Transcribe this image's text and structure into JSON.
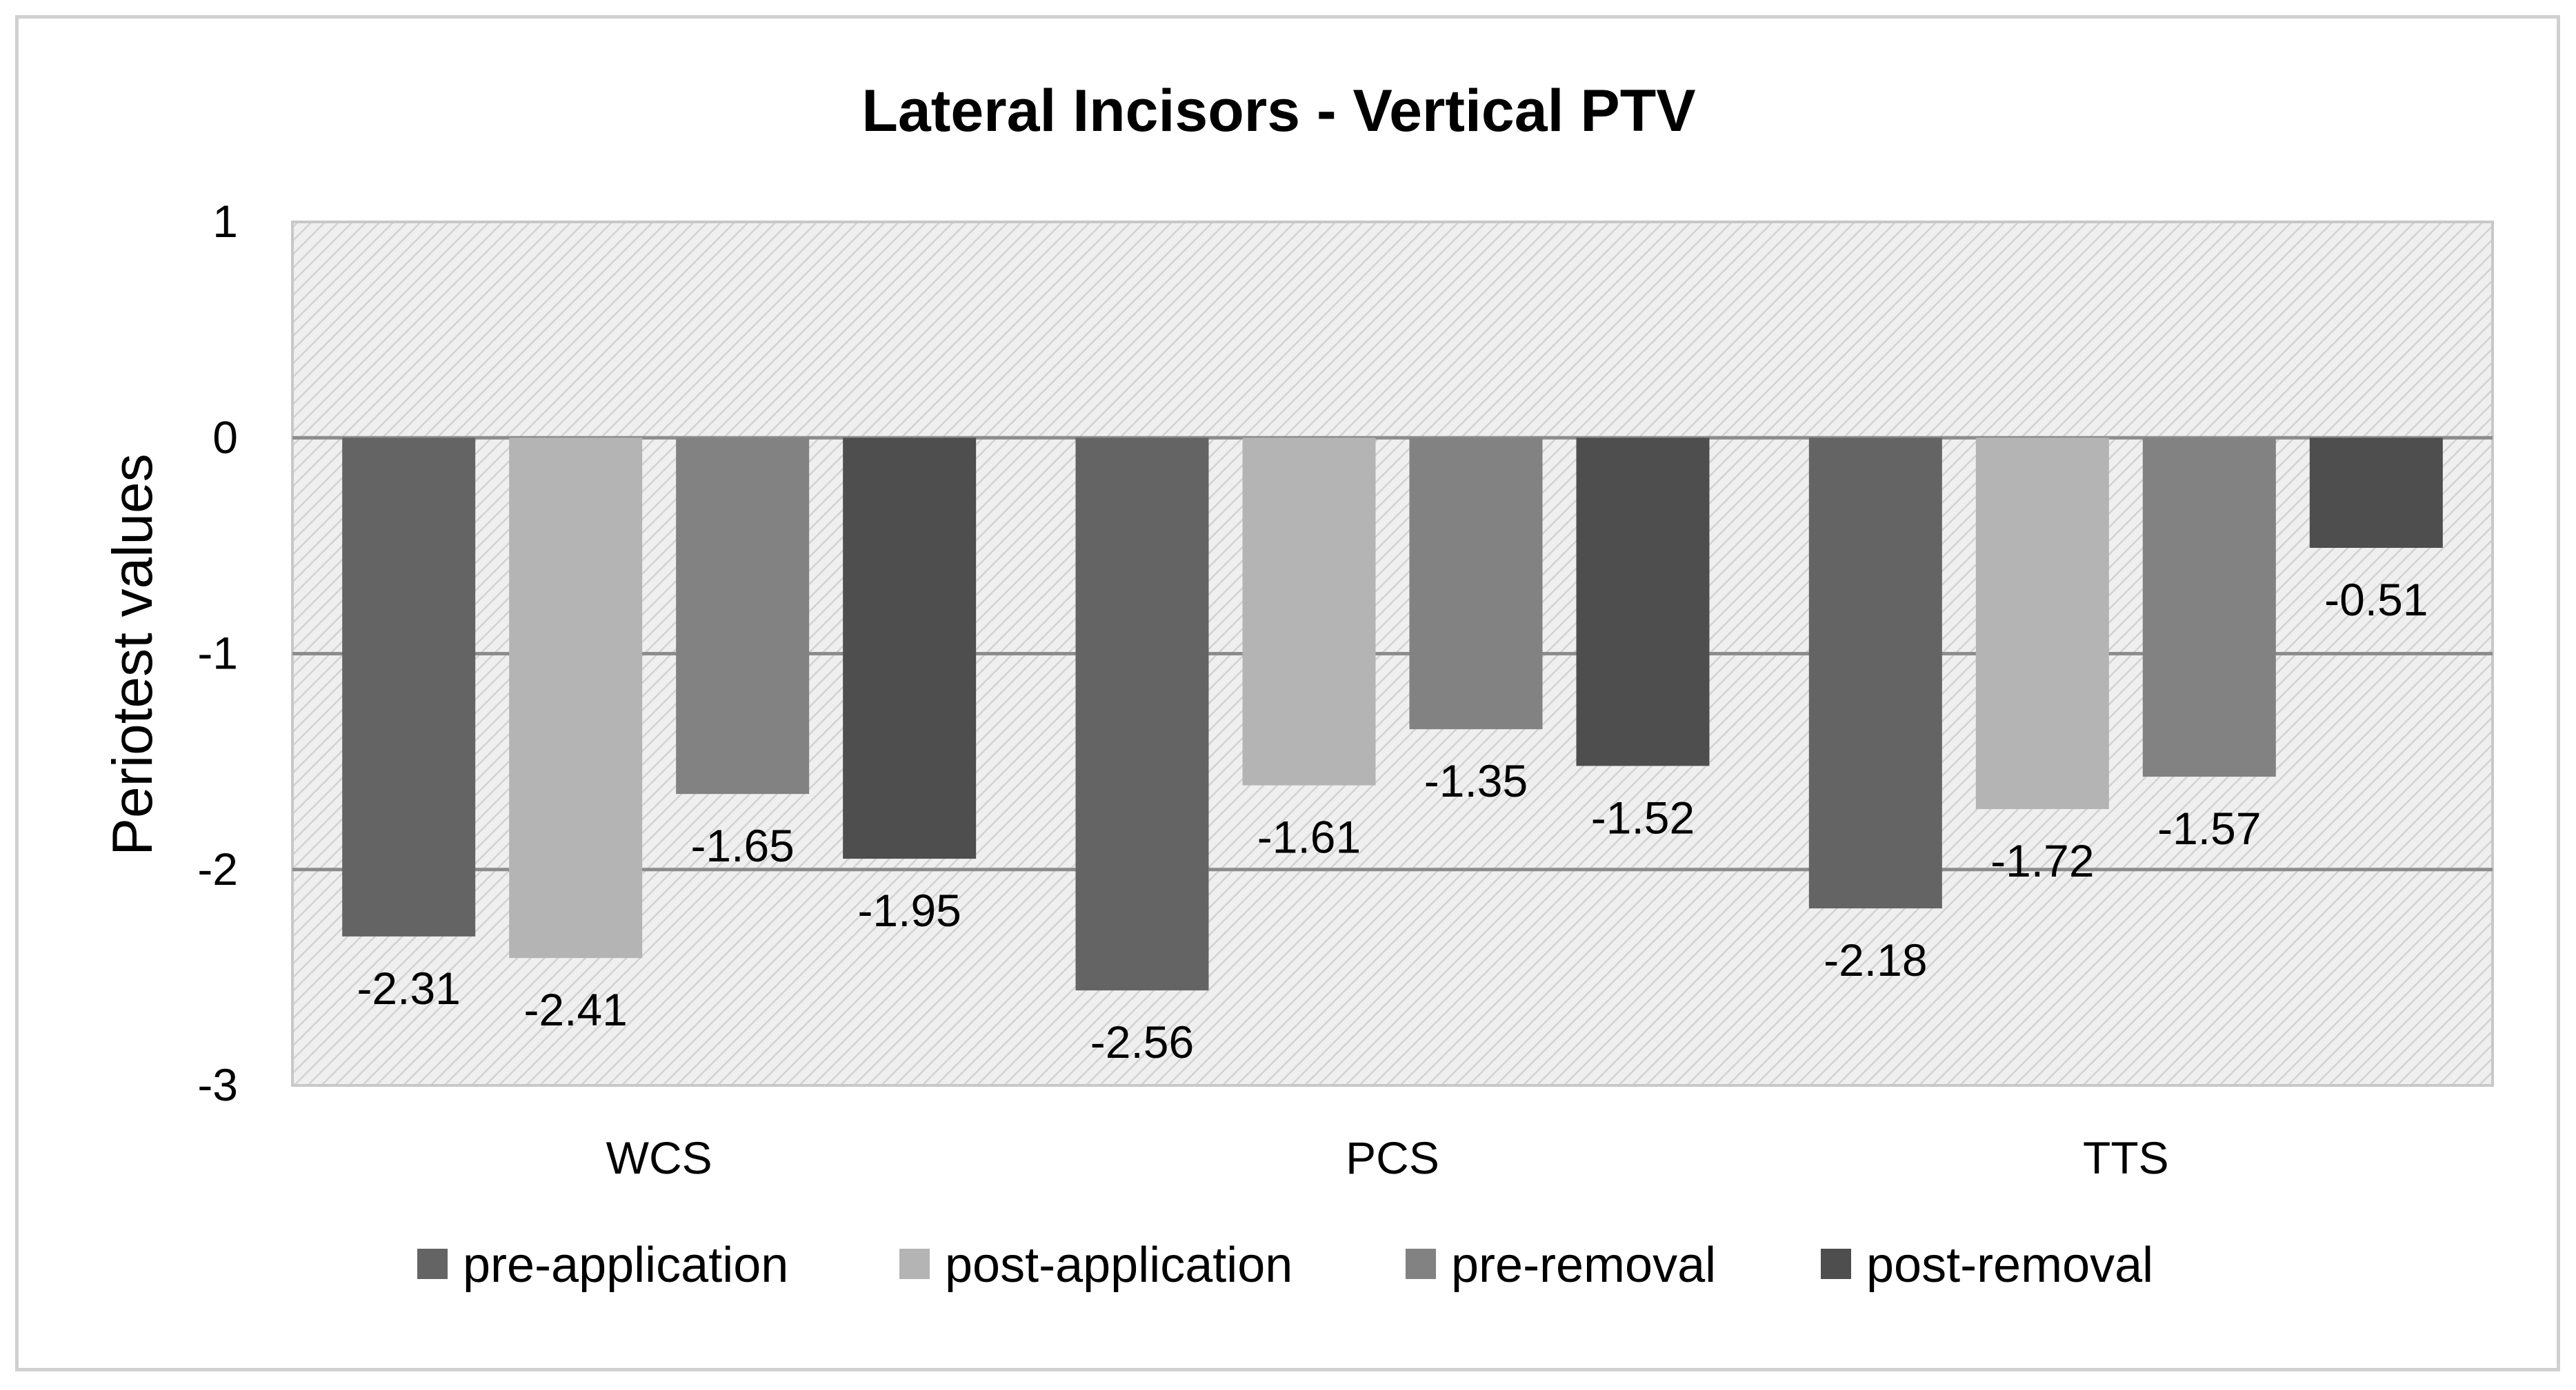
{
  "chart_data": {
    "type": "bar",
    "title": "Lateral Incisors - Vertical PTV",
    "xlabel": "",
    "ylabel": "Periotest values",
    "ylim": [
      -3,
      1
    ],
    "yticks": [
      "1",
      "0",
      "-1",
      "-2",
      "-3"
    ],
    "categories": [
      "WCS",
      "PCS",
      "TTS"
    ],
    "series": [
      {
        "name": "pre-application",
        "values": [
          -2.31,
          -2.56,
          -2.18
        ],
        "labels": [
          "-2.31",
          "-2.56",
          "-2.18"
        ],
        "color": "#646464"
      },
      {
        "name": "post-application",
        "values": [
          -2.41,
          -1.61,
          -1.72
        ],
        "labels": [
          "-2.41",
          "-1.61",
          "-1.72"
        ],
        "color": "#b4b4b4"
      },
      {
        "name": "pre-removal",
        "values": [
          -1.65,
          -1.35,
          -1.57
        ],
        "labels": [
          "-1.65",
          "-1.35",
          "-1.57"
        ],
        "color": "#828282"
      },
      {
        "name": "post-removal",
        "values": [
          -1.95,
          -1.52,
          -0.51
        ],
        "labels": [
          "-1.95",
          "-1.52",
          "-0.51"
        ],
        "color": "#4e4e4e"
      }
    ],
    "grid": true,
    "legend": "bottom",
    "plot_background": "hatched light gray"
  }
}
